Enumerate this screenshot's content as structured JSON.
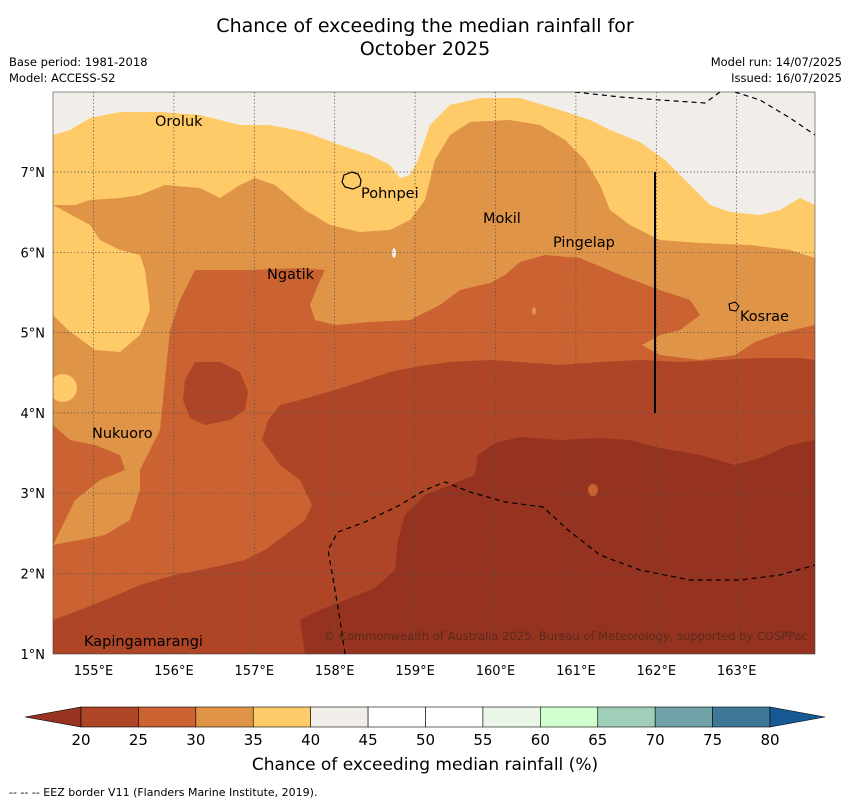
{
  "title": {
    "line1": "Chance of exceeding the median rainfall for",
    "line2": "October 2025"
  },
  "meta": {
    "base_period": "Base period: 1981-2018",
    "model": "Model: ACCESS-S2",
    "model_run": "Model run: 14/07/2025",
    "issued": "Issued: 16/07/2025"
  },
  "map": {
    "lon_labels": [
      "155°E",
      "156°E",
      "157°E",
      "158°E",
      "159°E",
      "160°E",
      "161°E",
      "162°E",
      "163°E"
    ],
    "lat_labels": [
      "7°N",
      "6°N",
      "5°N",
      "4°N",
      "3°N",
      "2°N",
      "1°N"
    ],
    "places": [
      "Oroluk",
      "Pohnpei",
      "Mokil",
      "Pingelap",
      "Ngatik",
      "Kosrae",
      "Nukuoro",
      "Kapingamarangi"
    ],
    "credit": "© Commonwealth of Australia 2025, Bureau of Meteorology, supported by COSPPac",
    "colors": {
      "lt20": "#953320",
      "c20_25": "#ad4526",
      "c25_30": "#ca6232",
      "c30_35": "#e09447",
      "c35_40": "#fecb68",
      "c40_45": "#f1ede8",
      "c45_55": "#ffffff",
      "c55_60": "#eaf6e8",
      "c60_65": "#cfffcc",
      "c65_70": "#9fcfb8",
      "c70_75": "#6fa3a8",
      "c75_80": "#3f7799",
      "gt80": "#175993"
    }
  },
  "colorbar": {
    "ticks": [
      "20",
      "25",
      "30",
      "35",
      "40",
      "45",
      "50",
      "55",
      "60",
      "65",
      "70",
      "75",
      "80"
    ],
    "label": "Chance of exceeding median rainfall (%)"
  },
  "footer": "--  --  -- EEZ border V11 (Flanders Marine Institute, 2019)."
}
